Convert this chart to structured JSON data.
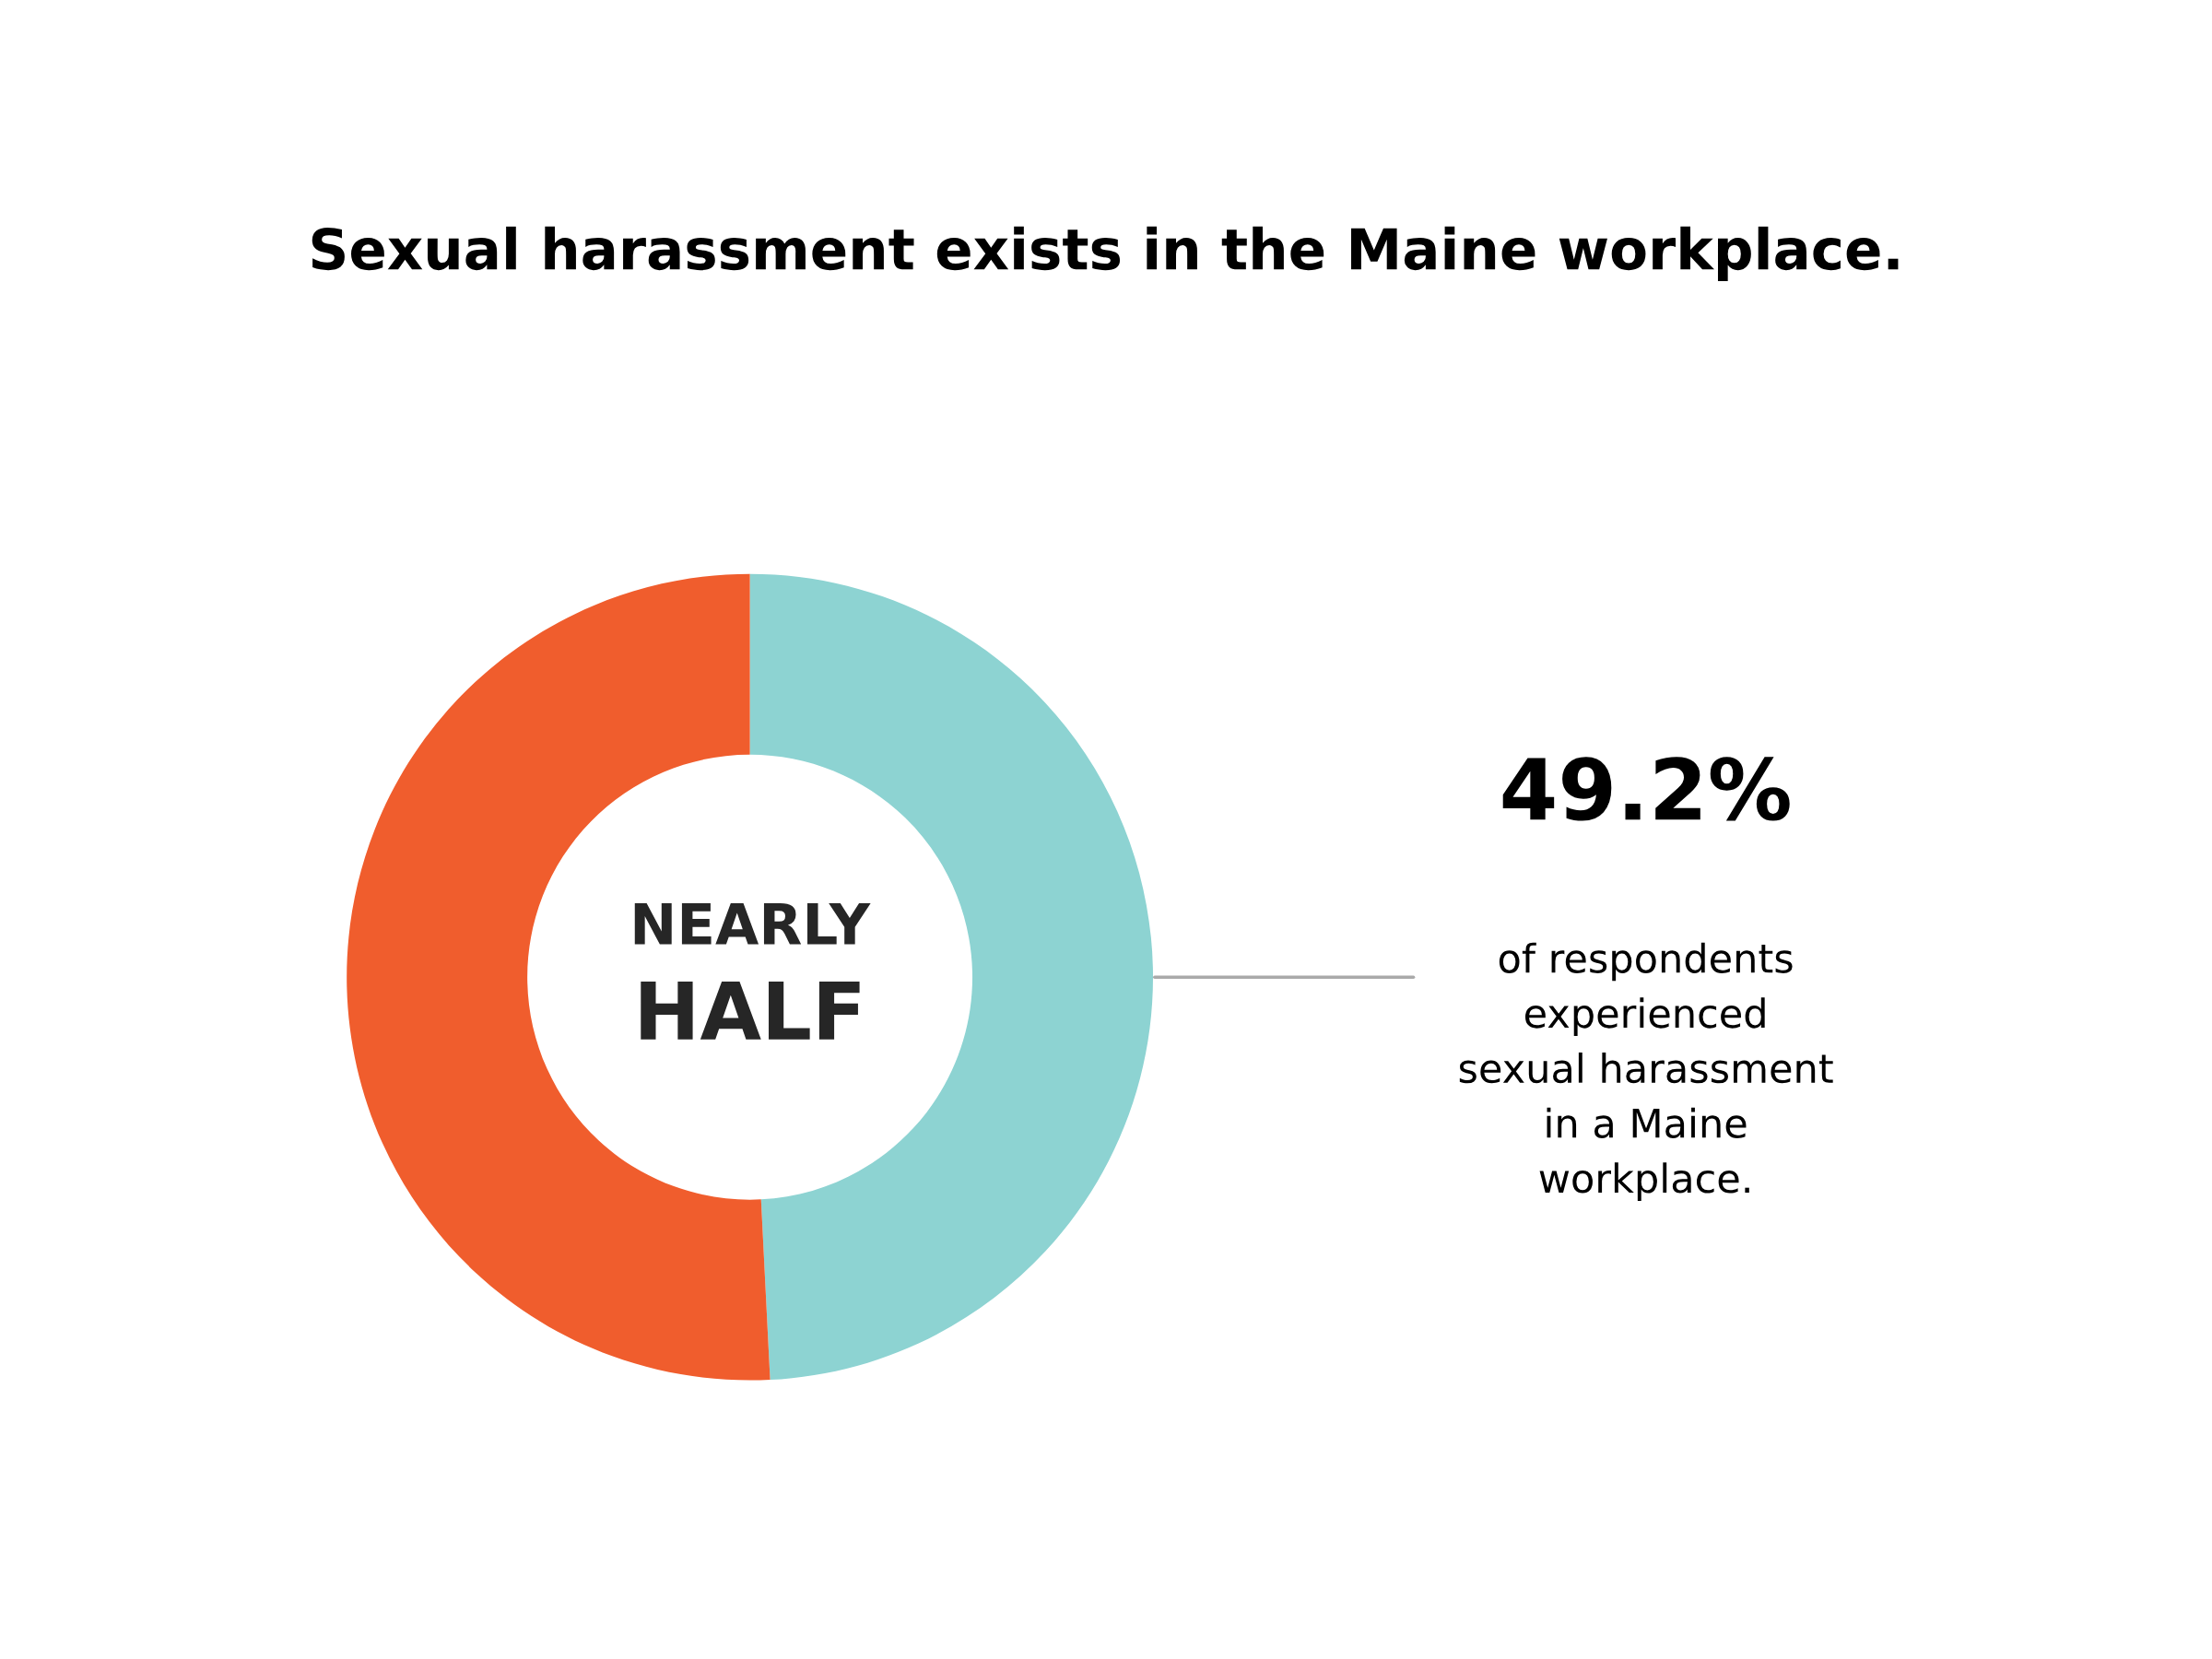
{
  "chart_data": {
    "type": "donut",
    "title": "Sexual harassment exists in the Maine workplace.",
    "categories": [
      null,
      null
    ],
    "values": [
      49.2,
      50.8
    ],
    "colors": [
      "#8dd3d2",
      "#f05d2d"
    ],
    "annotations": [
      "NEARLY",
      "HALF",
      "49.2%",
      "of respondents\nexperienced\nsexual harassment\nin a Maine\nworkplace."
    ]
  }
}
